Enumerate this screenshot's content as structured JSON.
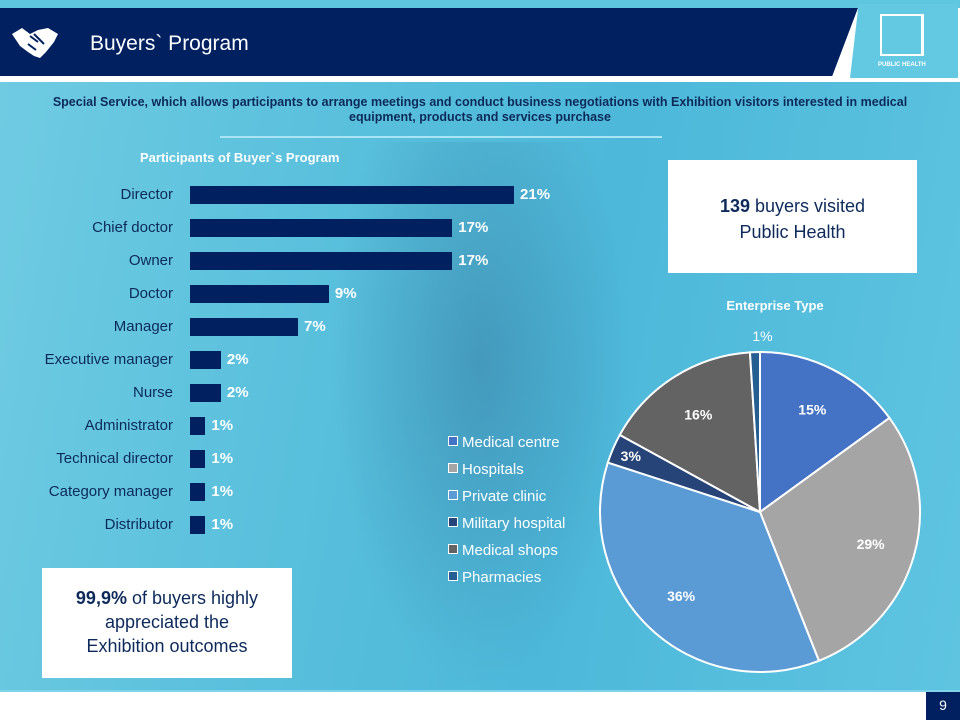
{
  "header": {
    "title": "Buyers` Program",
    "logo_text": "PUBLIC HEALTH",
    "icon": "handshake-icon"
  },
  "subtitle": "Special Service, which allows participants to arrange meetings and conduct business negotiations with Exhibition visitors interested in medical equipment, products and services purchase",
  "stats": {
    "buyers_count": "139",
    "buyers_text": "buyers visited",
    "buyers_text2": "Public Health",
    "appreciation_value": "99,9%",
    "appreciation_text": "of buyers highly",
    "appreciation_text2": "appreciated the",
    "appreciation_text3": "Exhibition outcomes"
  },
  "page_number": "9",
  "chart_data": [
    {
      "type": "bar",
      "orientation": "horizontal",
      "title": "Participants of Buyer`s Program",
      "categories": [
        "Director",
        "Chief doctor",
        "Owner",
        "Doctor",
        "Manager",
        "Executive manager",
        "Nurse",
        "Administrator",
        "Technical director",
        "Category manager",
        "Distributor"
      ],
      "values": [
        21,
        17,
        17,
        9,
        7,
        2,
        2,
        1,
        1,
        1,
        1
      ],
      "labels": [
        "21%",
        "17%",
        "17%",
        "9%",
        "7%",
        "2%",
        "2%",
        "1%",
        "1%",
        "1%",
        "1%"
      ],
      "color": "#002060",
      "unit": "%"
    },
    {
      "type": "pie",
      "title": "Enterprise Type",
      "legend": "left",
      "categories": [
        "Medical centre",
        "Hospitals",
        "Private clinic",
        "Military hospital",
        "Medical shops",
        "Pharmacies"
      ],
      "values": [
        15,
        29,
        36,
        3,
        16,
        1
      ],
      "labels": [
        "15%",
        "29%",
        "36%",
        "3%",
        "16%",
        "1%"
      ],
      "colors": [
        "#4472c4",
        "#a5a5a5",
        "#5b9bd5",
        "#264478",
        "#636363",
        "#255e91"
      ]
    }
  ]
}
